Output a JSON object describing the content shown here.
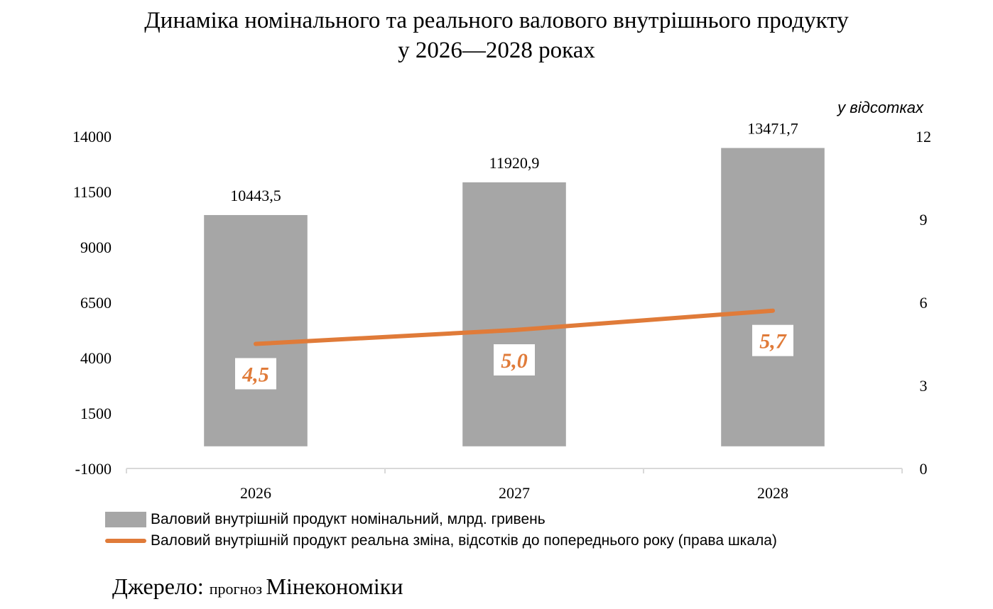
{
  "title": {
    "line1": "Динаміка номінального та реального валового внутрішнього продукту",
    "line2": "у 2026—2028 роках"
  },
  "chart_data": {
    "type": "bar",
    "categories": [
      "2026",
      "2027",
      "2028"
    ],
    "series": [
      {
        "name": "Валовий внутрішній продукт номінальний, млрд. гривень",
        "kind": "bar",
        "axis": "left",
        "values": [
          10443.5,
          11920.9,
          13471.7
        ],
        "labels": [
          "10443,5",
          "11920,9",
          "13471,7"
        ],
        "color": "#A6A6A6"
      },
      {
        "name": "Валовий внутрішній продукт реальна зміна, відсотків до попереднього року (права шкала)",
        "kind": "line",
        "axis": "right",
        "values": [
          4.5,
          5.0,
          5.7
        ],
        "labels": [
          "4,5",
          "5,0",
          "5,7"
        ],
        "color": "#E07B39"
      }
    ],
    "left_axis": {
      "ylim": [
        -1000,
        14000
      ],
      "ticks": [
        -1000,
        1500,
        4000,
        6500,
        9000,
        11500,
        14000
      ],
      "tick_labels": [
        "-1000",
        "1500",
        "4000",
        "6500",
        "9000",
        "11500",
        "14000"
      ]
    },
    "right_axis": {
      "ylim": [
        0,
        12
      ],
      "ticks": [
        0,
        3,
        6,
        9,
        12
      ],
      "tick_labels": [
        "0",
        "3",
        "6",
        "9",
        "12"
      ],
      "unit_label": "у відсотках"
    },
    "legend_position": "bottom"
  },
  "source": {
    "prefix": "Джерело: ",
    "middle": "прогноз ",
    "org": "Мінекономіки"
  }
}
